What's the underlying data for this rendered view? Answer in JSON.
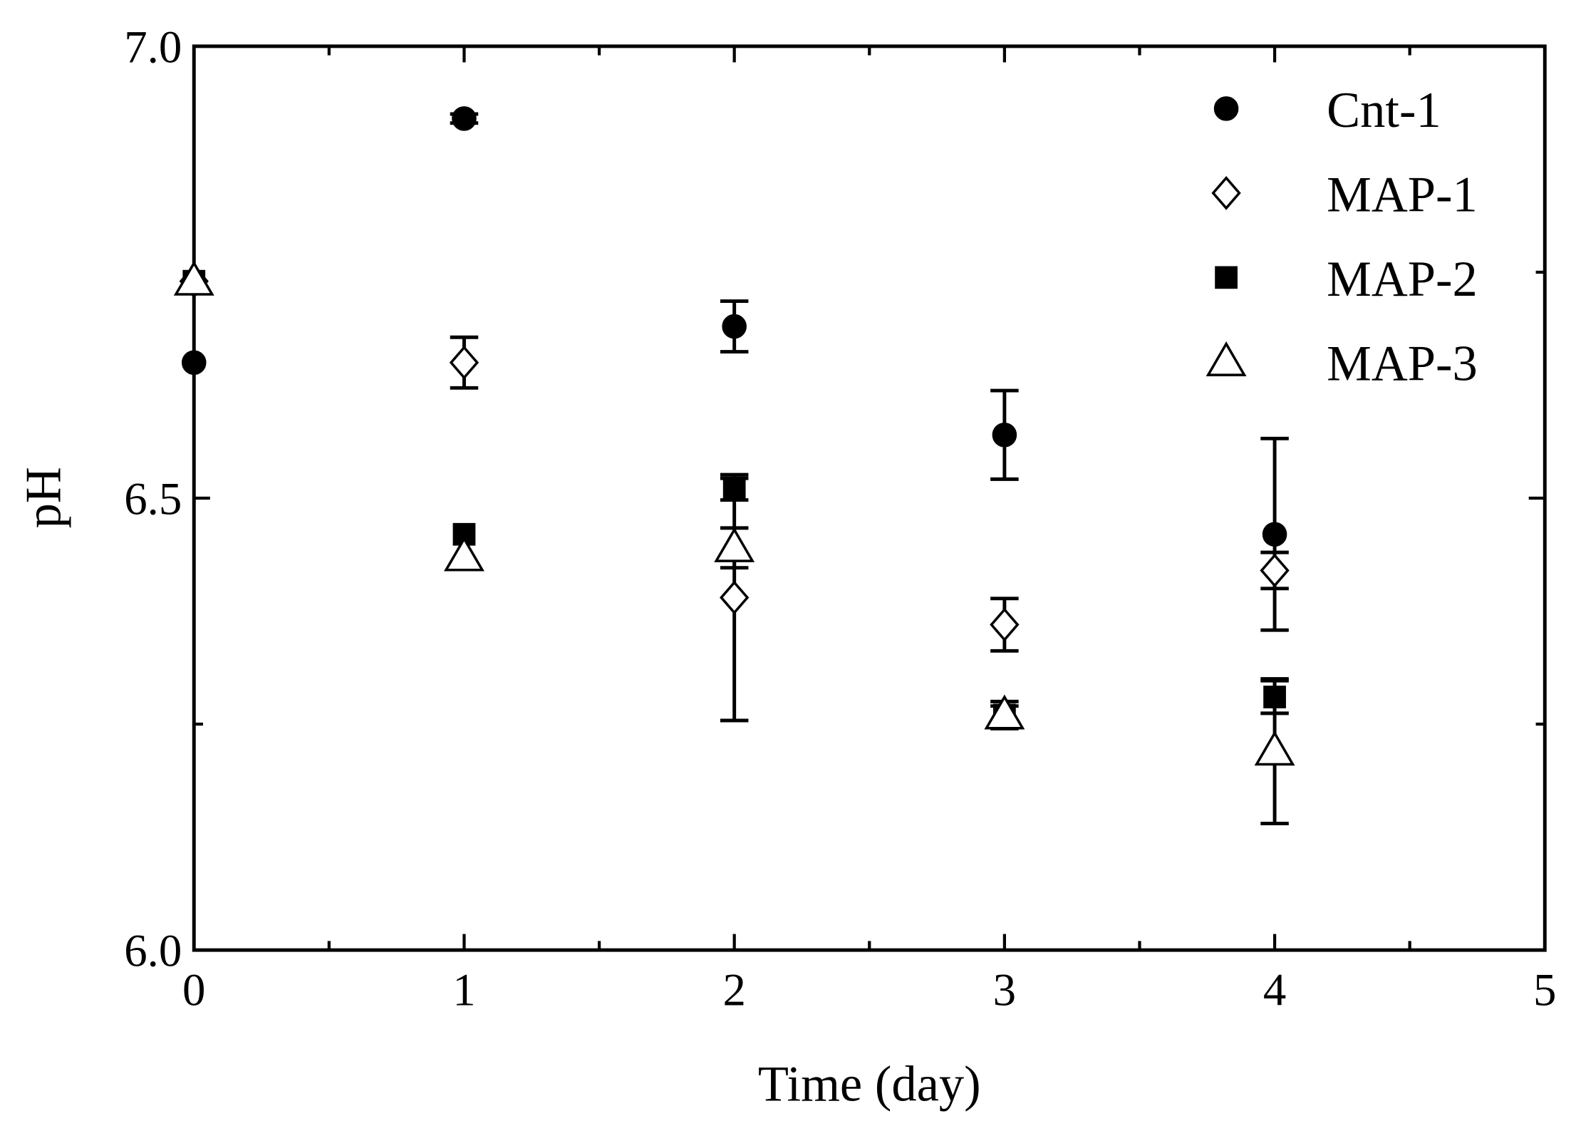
{
  "chart_data": {
    "type": "scatter",
    "x_label": "Time (day)",
    "y_label": "pH",
    "xlim": [
      0,
      5
    ],
    "xticks": [
      0,
      1,
      2,
      3,
      4,
      5
    ],
    "ylim": [
      6,
      7
    ],
    "yticks": [
      {
        "value": 6,
        "label": "6.0"
      },
      {
        "value": 6.5,
        "label": "6.5"
      },
      {
        "value": 7,
        "label": "7.0"
      }
    ],
    "legend": "top-right",
    "series": [
      {
        "name": "Cnt-1",
        "marker": "circle",
        "color": "#000000",
        "filled": true,
        "x": [
          0,
          1,
          2,
          3,
          4
        ],
        "values": [
          6.65,
          6.92,
          6.69,
          6.57,
          6.46
        ],
        "errors": [
          null,
          0.005,
          0.028,
          0.049,
          0.106
        ]
      },
      {
        "name": "MAP-1",
        "marker": "diamond",
        "color": "#000000",
        "filled": false,
        "x": [
          0,
          1,
          2,
          3,
          4
        ],
        "values": [
          6.74,
          6.65,
          6.39,
          6.36,
          6.42
        ],
        "errors": [
          null,
          0.028,
          0.136,
          0.029,
          0.02
        ]
      },
      {
        "name": "MAP-2",
        "marker": "square",
        "color": "#000000",
        "filled": true,
        "x": [
          0,
          1,
          2,
          3,
          4
        ],
        "values": [
          6.74,
          6.46,
          6.51,
          6.26,
          6.28
        ],
        "errors": [
          null,
          null,
          0.012,
          0.01,
          0.018
        ]
      },
      {
        "name": "MAP-3",
        "marker": "triangle",
        "color": "#000000",
        "filled": false,
        "x": [
          0,
          1,
          2,
          3,
          4
        ],
        "values": [
          6.74,
          6.435,
          6.445,
          6.26,
          6.22
        ],
        "errors": [
          null,
          null,
          0.022,
          0.015,
          0.08
        ]
      }
    ]
  }
}
